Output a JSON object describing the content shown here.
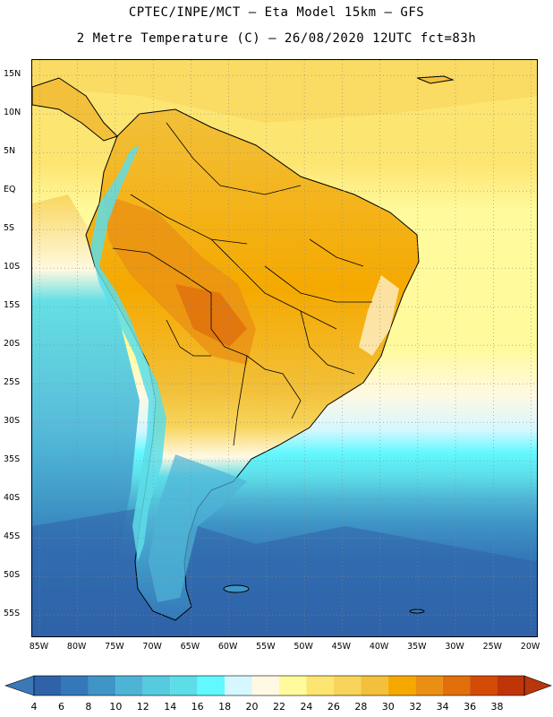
{
  "header": {
    "title_line1": "CPTEC/INPE/MCT –  Eta Model 15km – GFS",
    "title_line2": "2 Metre Temperature (C) – 26/08/2020 12UTC fct=83h"
  },
  "map": {
    "lon_range": [
      -86,
      -19
    ],
    "lat_range": [
      17,
      -58
    ],
    "lat_labels": [
      {
        "lat": 15,
        "text": "15N"
      },
      {
        "lat": 10,
        "text": "10N"
      },
      {
        "lat": 5,
        "text": "5N"
      },
      {
        "lat": 0,
        "text": "EQ"
      },
      {
        "lat": -5,
        "text": "5S"
      },
      {
        "lat": -10,
        "text": "10S"
      },
      {
        "lat": -15,
        "text": "15S"
      },
      {
        "lat": -20,
        "text": "20S"
      },
      {
        "lat": -25,
        "text": "25S"
      },
      {
        "lat": -30,
        "text": "30S"
      },
      {
        "lat": -35,
        "text": "35S"
      },
      {
        "lat": -40,
        "text": "40S"
      },
      {
        "lat": -45,
        "text": "45S"
      },
      {
        "lat": -50,
        "text": "50S"
      },
      {
        "lat": -55,
        "text": "55S"
      }
    ],
    "lon_labels": [
      {
        "lon": -85,
        "text": "85W"
      },
      {
        "lon": -80,
        "text": "80W"
      },
      {
        "lon": -75,
        "text": "75W"
      },
      {
        "lon": -70,
        "text": "70W"
      },
      {
        "lon": -65,
        "text": "65W"
      },
      {
        "lon": -60,
        "text": "60W"
      },
      {
        "lon": -55,
        "text": "55W"
      },
      {
        "lon": -50,
        "text": "50W"
      },
      {
        "lon": -45,
        "text": "45W"
      },
      {
        "lon": -40,
        "text": "40W"
      },
      {
        "lon": -35,
        "text": "35W"
      },
      {
        "lon": -30,
        "text": "30W"
      },
      {
        "lon": -25,
        "text": "25W"
      },
      {
        "lon": -20,
        "text": "20W"
      }
    ]
  },
  "colorbar": {
    "labels": [
      "4",
      "6",
      "8",
      "10",
      "12",
      "14",
      "16",
      "18",
      "20",
      "22",
      "24",
      "26",
      "28",
      "30",
      "32",
      "34",
      "36",
      "38"
    ],
    "low_arrow_color": "#3a78b8",
    "high_arrow_color": "#b8360c",
    "colors": [
      "#2f62a8",
      "#3478b9",
      "#3f95c6",
      "#4eb4d5",
      "#56cadf",
      "#5ddde8",
      "#62f8ff",
      "#d5f7ff",
      "#fff9e4",
      "#fffa9c",
      "#fde572",
      "#f8d45a",
      "#f2c03a",
      "#f5a900",
      "#ea8f14",
      "#e06f0c",
      "#d44b06",
      "#c03508"
    ]
  }
}
